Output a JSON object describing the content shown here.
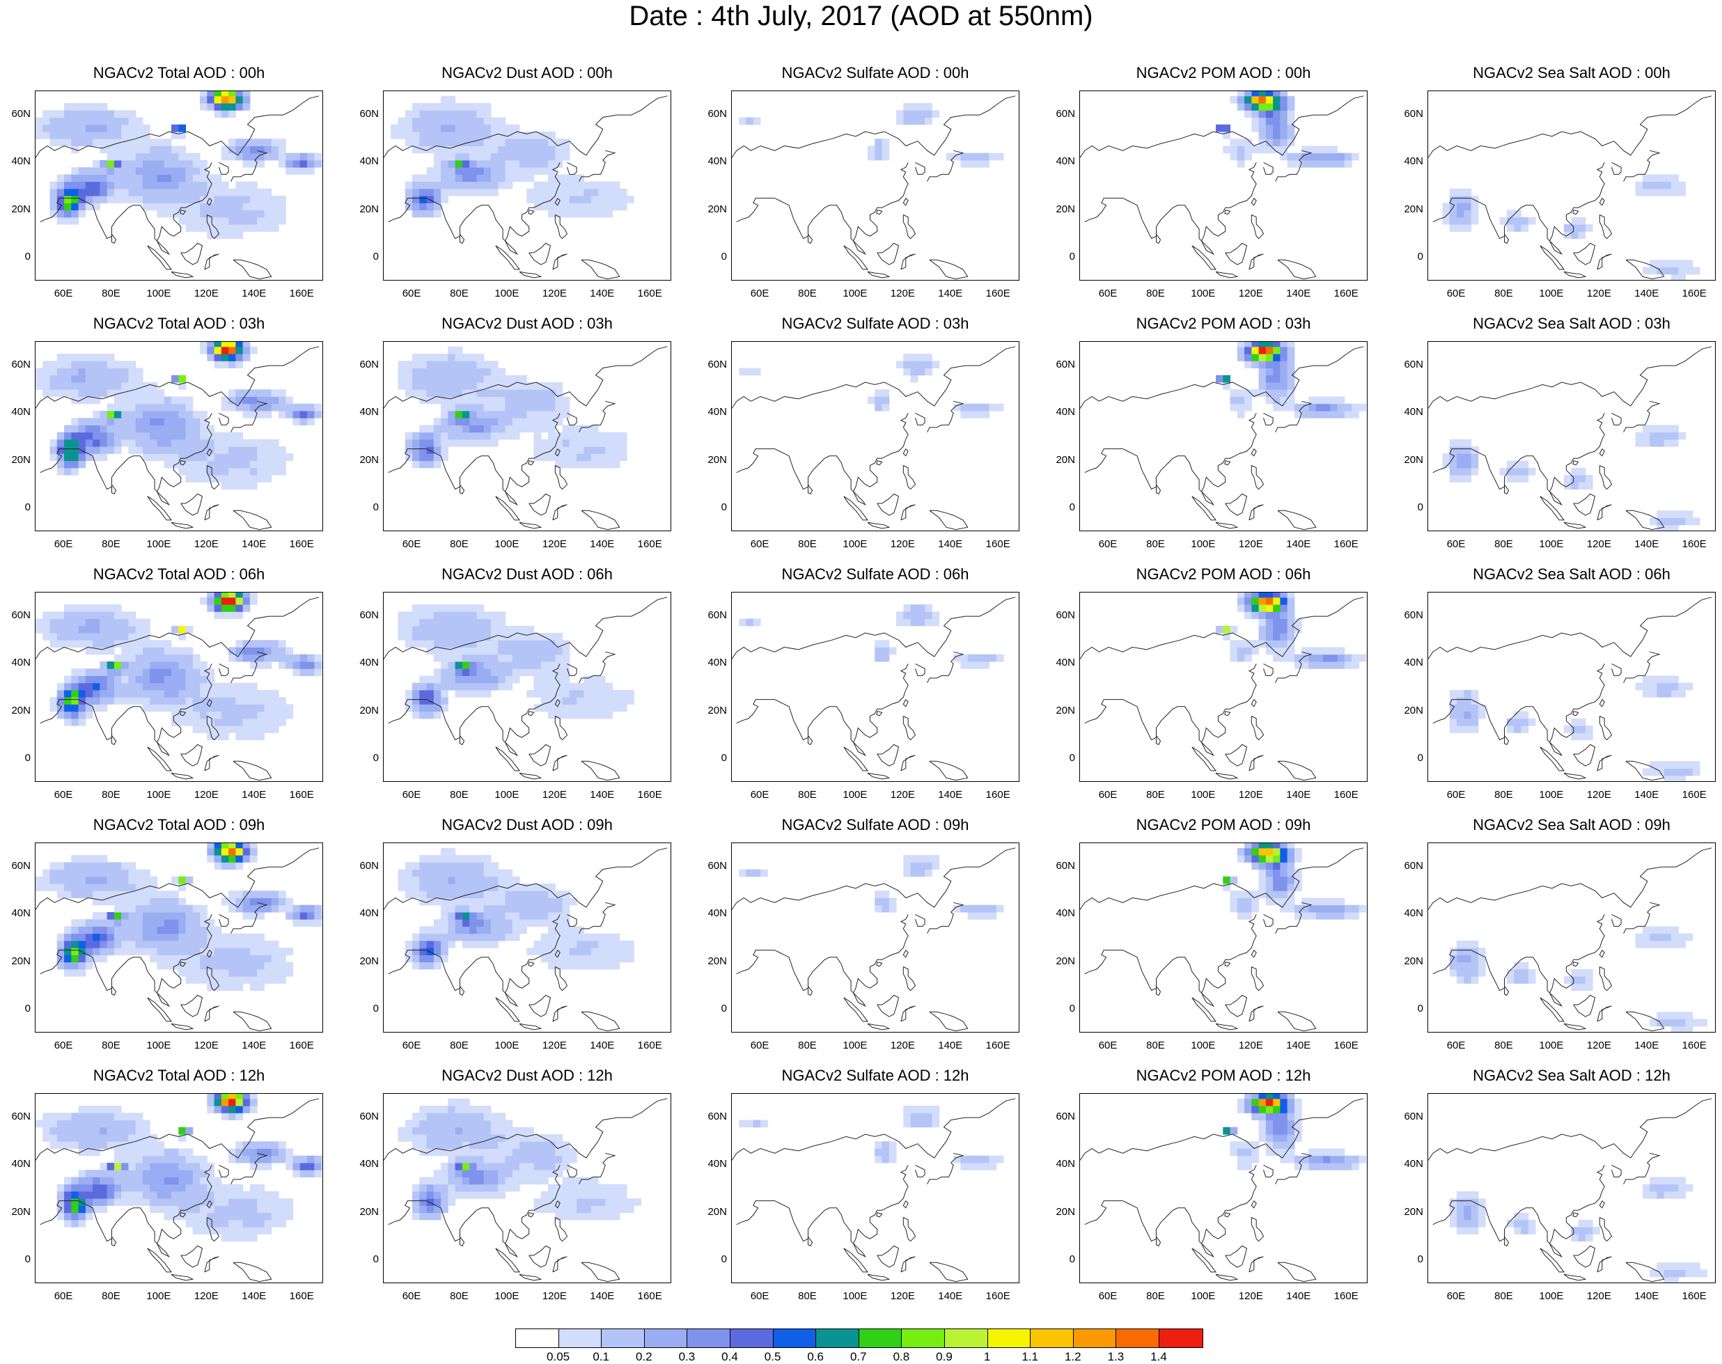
{
  "title": "Date : 4th July, 2017 (AOD at 550nm)",
  "row_titles": [
    [
      "NGACv2 Total AOD : 00h",
      "NGACv2 Dust AOD : 00h",
      "NGACv2 Sulfate AOD : 00h",
      "NGACv2 POM AOD : 00h",
      "NGACv2 Sea Salt AOD : 00h"
    ],
    [
      "NGACv2 Total AOD : 03h",
      "NGACv2 Dust AOD : 03h",
      "NGACv2 Sulfate AOD : 03h",
      "NGACv2 POM AOD : 03h",
      "NGACv2 Sea Salt AOD : 03h"
    ],
    [
      "NGACv2 Total AOD : 06h",
      "NGACv2 Dust AOD : 06h",
      "NGACv2 Sulfate AOD : 06h",
      "NGACv2 POM AOD : 06h",
      "NGACv2 Sea Salt AOD : 06h"
    ],
    [
      "NGACv2 Total AOD : 09h",
      "NGACv2 Dust AOD : 09h",
      "NGACv2 Sulfate AOD : 09h",
      "NGACv2 POM AOD : 09h",
      "NGACv2 Sea Salt  AOD : 09h"
    ],
    [
      "NGACv2 Total AOD  : 12h",
      "NGACv2 Dust AOD : 12h",
      "NGACv2 Sulfate AOD : 12h",
      "NGACv2 POM  AOD : 12h",
      "NGACv2 Sea Salt  AOD : 12h"
    ]
  ],
  "lat_labels": [
    "60N",
    "40N",
    "20N",
    "0"
  ],
  "lon_labels": [
    "60E",
    "80E",
    "100E",
    "120E",
    "140E",
    "160E"
  ],
  "colorbar": {
    "labels": [
      "0.05",
      "0.1",
      "0.2",
      "0.3",
      "0.4",
      "0.5",
      "0.6",
      "0.7",
      "0.8",
      "0.9",
      "1",
      "1.1",
      "1.2",
      "1.3",
      "1.4"
    ],
    "colors": [
      "#ffffff",
      "#d2dcfb",
      "#b4c4f6",
      "#9aadf2",
      "#7f92ec",
      "#5c6ae0",
      "#0f5fe8",
      "#0a9391",
      "#31d017",
      "#75ee10",
      "#b9f334",
      "#f5f500",
      "#fbc300",
      "#fb9a00",
      "#f96b00",
      "#ee1f10"
    ]
  },
  "map_data": {
    "extent_lon": [
      48,
      169
    ],
    "extent_lat": [
      -10,
      70
    ],
    "species": [
      "Total",
      "Dust",
      "Sulfate",
      "POM",
      "Sea Salt"
    ],
    "hours": [
      "00h",
      "03h",
      "06h",
      "09h",
      "12h"
    ]
  }
}
